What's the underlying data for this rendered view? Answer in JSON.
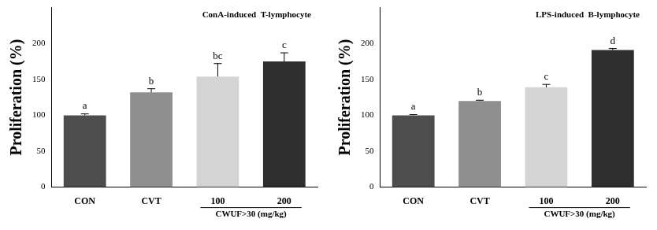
{
  "chart_data": [
    {
      "type": "bar",
      "title": "ConA-induced  T-lymphocyte",
      "ylabel": "Proliferation (%)",
      "xlabel": "CWUF>30 (mg/kg)",
      "categories": [
        "CON",
        "CVT",
        "100",
        "200"
      ],
      "values": [
        100,
        132,
        154,
        175
      ],
      "errors": [
        2,
        5,
        18,
        12
      ],
      "annotations": [
        "a",
        "b",
        "bc",
        "c"
      ],
      "colors": [
        "#4d4d4d",
        "#8f8f8f",
        "#d4d4d4",
        "#2e2e2e"
      ],
      "ylim": [
        0,
        250
      ],
      "yticks": [
        0,
        50,
        100,
        150,
        200
      ],
      "grid": false
    },
    {
      "type": "bar",
      "title": "LPS-induced  B-lymphocyte",
      "ylabel": "Proliferation (%)",
      "xlabel": "CWUF>30 (mg/kg)",
      "categories": [
        "CON",
        "CVT",
        "100",
        "200"
      ],
      "values": [
        100,
        120,
        139,
        191
      ],
      "errors": [
        1,
        1,
        4,
        2
      ],
      "annotations": [
        "a",
        "b",
        "c",
        "d"
      ],
      "colors": [
        "#4d4d4d",
        "#8f8f8f",
        "#d4d4d4",
        "#2e2e2e"
      ],
      "ylim": [
        0,
        250
      ],
      "yticks": [
        0,
        50,
        100,
        150,
        200
      ],
      "grid": false
    }
  ]
}
